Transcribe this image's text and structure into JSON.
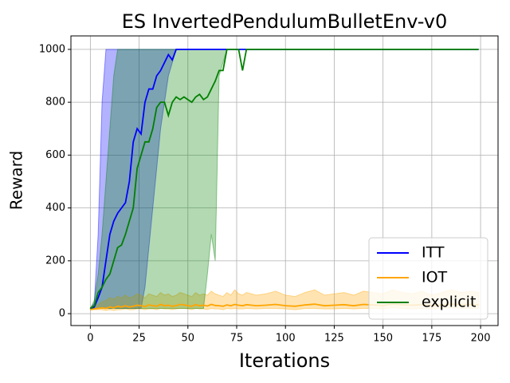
{
  "chart_data": {
    "type": "line",
    "title": "ES InvertedPendulumBulletEnv-v0",
    "x_label": "Iterations",
    "y_label": "Reward",
    "x": [
      0,
      2,
      4,
      6,
      8,
      10,
      12,
      14,
      16,
      18,
      20,
      22,
      24,
      26,
      28,
      30,
      32,
      34,
      36,
      38,
      40,
      42,
      44,
      46,
      48,
      50,
      52,
      54,
      56,
      58,
      60,
      62,
      64,
      66,
      68,
      70,
      72,
      74,
      76,
      78,
      80,
      85,
      90,
      95,
      100,
      105,
      110,
      115,
      120,
      125,
      130,
      135,
      140,
      145,
      150,
      155,
      160,
      165,
      170,
      175,
      180,
      185,
      190,
      195,
      199
    ],
    "series": [
      {
        "name": "ITT",
        "color": "#0000ff",
        "values": [
          20,
          25,
          60,
          100,
          200,
          300,
          350,
          380,
          400,
          420,
          500,
          650,
          700,
          680,
          800,
          850,
          850,
          900,
          920,
          950,
          980,
          960,
          1000,
          1000,
          1000,
          1000,
          1000,
          1000,
          1000,
          1000,
          1000,
          1000,
          1000,
          1000,
          1000,
          1000,
          1000,
          1000,
          1000,
          1000,
          1000,
          1000,
          1000,
          1000,
          1000,
          1000,
          1000,
          1000,
          1000,
          1000,
          1000,
          1000,
          1000,
          1000,
          1000,
          1000,
          1000,
          1000,
          1000,
          1000,
          1000,
          1000,
          1000,
          1000,
          1000
        ],
        "upper": [
          20,
          40,
          300,
          800,
          1000,
          1000,
          1000,
          1000,
          1000,
          1000,
          1000,
          1000,
          1000,
          1000,
          1000,
          1000,
          1000,
          1000,
          1000,
          1000,
          1000,
          1000,
          1000,
          1000,
          1000,
          1000,
          1000,
          1000,
          1000,
          1000,
          1000,
          1000,
          1000,
          1000,
          1000,
          1000,
          1000,
          1000,
          1000,
          1000,
          1000,
          1000,
          1000,
          1000,
          1000,
          1000,
          1000,
          1000,
          1000,
          1000,
          1000,
          1000,
          1000,
          1000,
          1000,
          1000,
          1000,
          1000,
          1000,
          1000,
          1000,
          1000,
          1000,
          1000,
          1000
        ],
        "lower": [
          20,
          20,
          20,
          20,
          20,
          20,
          20,
          20,
          20,
          20,
          20,
          20,
          20,
          20,
          100,
          250,
          400,
          550,
          700,
          800,
          900,
          950,
          1000,
          1000,
          1000,
          1000,
          1000,
          1000,
          1000,
          1000,
          1000,
          1000,
          1000,
          1000,
          1000,
          1000,
          1000,
          1000,
          1000,
          1000,
          1000,
          1000,
          1000,
          1000,
          1000,
          1000,
          1000,
          1000,
          1000,
          1000,
          1000,
          1000,
          1000,
          1000,
          1000,
          1000,
          1000,
          1000,
          1000,
          1000,
          1000,
          1000,
          1000,
          1000,
          1000
        ]
      },
      {
        "name": "IOT",
        "color": "#ffa500",
        "values": [
          15,
          18,
          20,
          22,
          20,
          25,
          22,
          28,
          25,
          30,
          25,
          28,
          32,
          30,
          27,
          33,
          30,
          28,
          35,
          30,
          32,
          28,
          30,
          35,
          33,
          30,
          28,
          34,
          30,
          32,
          29,
          35,
          31,
          30,
          28,
          33,
          30,
          35,
          32,
          30,
          34,
          30,
          32,
          35,
          30,
          28,
          33,
          36,
          30,
          32,
          34,
          30,
          35,
          33,
          31,
          36,
          34,
          32,
          35,
          30,
          33,
          36,
          34,
          35,
          33
        ],
        "upper": [
          20,
          25,
          35,
          45,
          50,
          60,
          55,
          65,
          60,
          70,
          60,
          65,
          75,
          70,
          60,
          75,
          70,
          65,
          80,
          70,
          75,
          65,
          70,
          80,
          75,
          70,
          65,
          80,
          70,
          75,
          70,
          85,
          75,
          70,
          65,
          80,
          70,
          90,
          75,
          70,
          80,
          70,
          75,
          85,
          70,
          65,
          80,
          90,
          70,
          75,
          80,
          70,
          85,
          80,
          75,
          90,
          80,
          75,
          85,
          70,
          80,
          90,
          80,
          85,
          80
        ],
        "lower": [
          15,
          15,
          15,
          15,
          12,
          15,
          12,
          15,
          15,
          18,
          15,
          15,
          18,
          18,
          15,
          18,
          18,
          15,
          20,
          18,
          18,
          15,
          18,
          20,
          20,
          18,
          15,
          20,
          18,
          18,
          16,
          20,
          18,
          18,
          15,
          20,
          18,
          20,
          18,
          18,
          20,
          18,
          20,
          20,
          18,
          15,
          20,
          20,
          18,
          18,
          20,
          18,
          20,
          20,
          18,
          22,
          20,
          18,
          20,
          18,
          20,
          22,
          20,
          20,
          20
        ]
      },
      {
        "name": "explicit",
        "color": "#008000",
        "values": [
          20,
          30,
          80,
          100,
          130,
          150,
          200,
          250,
          260,
          300,
          350,
          400,
          550,
          600,
          650,
          650,
          700,
          780,
          800,
          800,
          750,
          800,
          820,
          810,
          820,
          810,
          800,
          820,
          830,
          810,
          820,
          850,
          880,
          920,
          920,
          1000,
          1000,
          1000,
          1000,
          920,
          1000,
          1000,
          1000,
          1000,
          1000,
          1000,
          1000,
          1000,
          1000,
          1000,
          1000,
          1000,
          1000,
          1000,
          1000,
          1000,
          1000,
          1000,
          1000,
          1000,
          1000,
          1000,
          1000,
          1000,
          1000
        ],
        "upper": [
          20,
          50,
          150,
          300,
          500,
          700,
          900,
          1000,
          1000,
          1000,
          1000,
          1000,
          1000,
          1000,
          1000,
          1000,
          1000,
          1000,
          1000,
          1000,
          1000,
          1000,
          1000,
          1000,
          1000,
          1000,
          1000,
          1000,
          1000,
          1000,
          1000,
          1000,
          1000,
          1000,
          1000,
          1000,
          1000,
          1000,
          1000,
          1000,
          1000,
          1000,
          1000,
          1000,
          1000,
          1000,
          1000,
          1000,
          1000,
          1000,
          1000,
          1000,
          1000,
          1000,
          1000,
          1000,
          1000,
          1000,
          1000,
          1000,
          1000,
          1000,
          1000,
          1000,
          1000
        ],
        "lower": [
          20,
          20,
          20,
          20,
          20,
          20,
          20,
          20,
          20,
          20,
          20,
          20,
          20,
          20,
          20,
          20,
          20,
          20,
          20,
          20,
          20,
          20,
          20,
          20,
          20,
          20,
          20,
          20,
          20,
          20,
          150,
          300,
          200,
          900,
          950,
          1000,
          1000,
          1000,
          1000,
          1000,
          1000,
          1000,
          1000,
          1000,
          1000,
          1000,
          1000,
          1000,
          1000,
          1000,
          1000,
          1000,
          1000,
          1000,
          1000,
          1000,
          1000,
          1000,
          1000,
          1000,
          1000,
          1000,
          1000,
          1000,
          1000
        ]
      }
    ],
    "xlim": [
      -9.95,
      208.95
    ],
    "ylim": [
      -45,
      1051
    ],
    "xticks": [
      0,
      25,
      50,
      75,
      100,
      125,
      150,
      175,
      200
    ],
    "yticks": [
      0,
      200,
      400,
      600,
      800,
      1000
    ],
    "grid": true,
    "legend": "lower right"
  }
}
